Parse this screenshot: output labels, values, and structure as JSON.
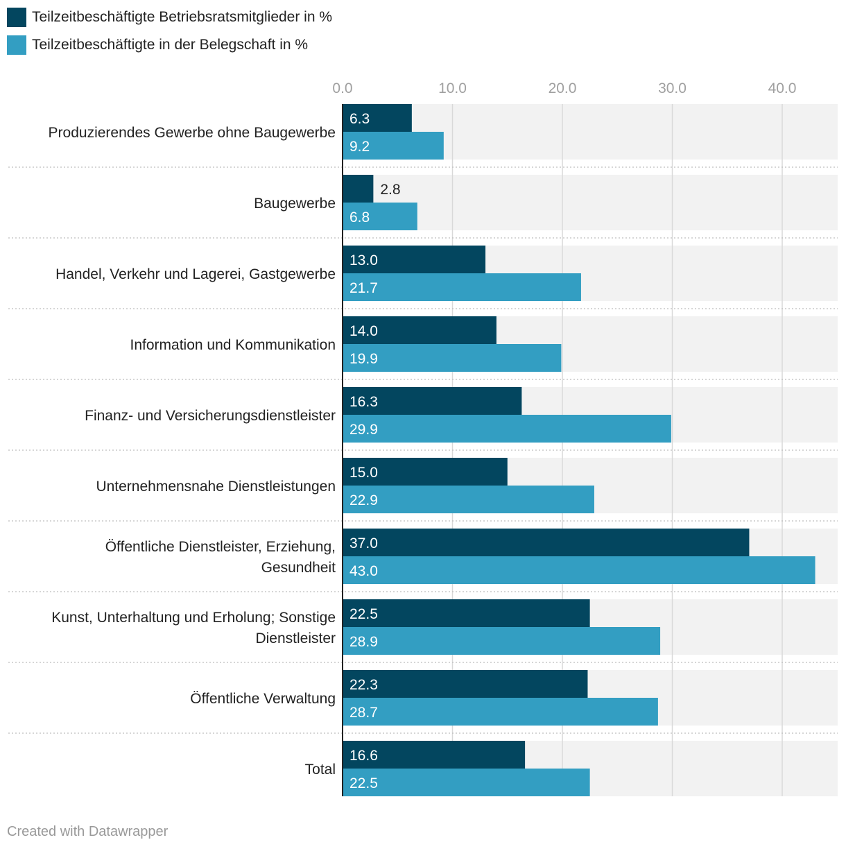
{
  "chart_data": {
    "type": "bar",
    "orientation": "horizontal",
    "categories": [
      "Produzierendes Gewerbe ohne Baugewerbe",
      "Baugewerbe",
      "Handel, Verkehr und Lagerei, Gastgewerbe",
      "Information und Kommunikation",
      "Finanz- und Versicherungsdienstleister",
      "Unternehmensnahe Dienstleistungen",
      "Öffentliche Dienstleister, Erziehung, Gesundheit",
      "Kunst, Unterhaltung und Erholung; Sonstige Dienstleister",
      "Öffentliche Verwaltung",
      "Total"
    ],
    "category_lines": [
      [
        "Produzierendes Gewerbe ohne Baugewerbe"
      ],
      [
        "Baugewerbe"
      ],
      [
        "Handel, Verkehr und Lagerei, Gastgewerbe"
      ],
      [
        "Information und Kommunikation"
      ],
      [
        "Finanz- und Versicherungsdienstleister"
      ],
      [
        "Unternehmensnahe Dienstleistungen"
      ],
      [
        "Öffentliche Dienstleister, Erziehung,",
        "Gesundheit"
      ],
      [
        "Kunst, Unterhaltung und Erholung; Sonstige",
        "Dienstleister"
      ],
      [
        "Öffentliche Verwaltung"
      ],
      [
        "Total"
      ]
    ],
    "series": [
      {
        "name": "Teilzeitbeschäftigte Betriebsratsmitglieder in %",
        "color": "#03465f",
        "values": [
          6.3,
          2.8,
          13.0,
          14.0,
          16.3,
          15.0,
          37.0,
          22.5,
          22.3,
          16.6
        ]
      },
      {
        "name": "Teilzeitbeschäftigte in der Belegschaft in %",
        "color": "#339ec2",
        "values": [
          9.2,
          6.8,
          21.7,
          19.9,
          29.9,
          22.9,
          43.0,
          28.9,
          28.7,
          22.5
        ]
      }
    ],
    "x_ticks": [
      "0.0",
      "10.0",
      "20.0",
      "30.0",
      "40.0"
    ],
    "x_tick_values": [
      0,
      10,
      20,
      30,
      40
    ],
    "xlim": [
      0,
      45
    ],
    "legend": "top-left",
    "grid": true
  },
  "footer": {
    "credit": "Created with Datawrapper"
  }
}
